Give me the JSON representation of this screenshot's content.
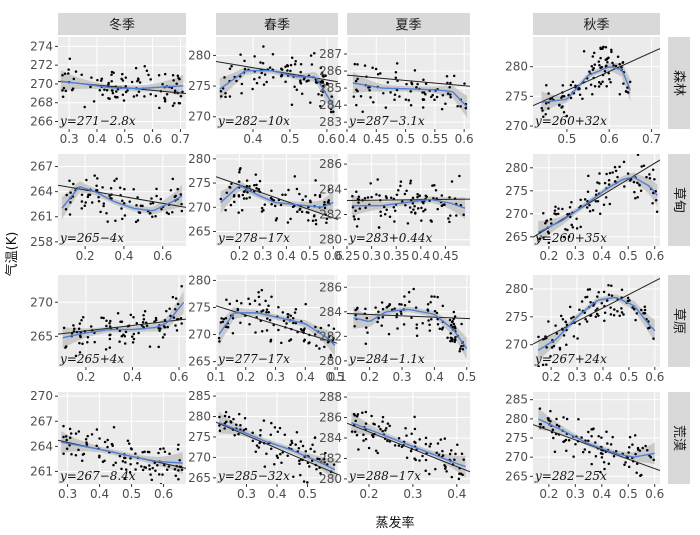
{
  "title": "",
  "xlabel": "蒸发率",
  "ylabel": "气温(K)",
  "col_labels": [
    "冬季",
    "春季",
    "夏季",
    "秋季"
  ],
  "row_labels": [
    "森林",
    "草甸",
    "草原",
    "荒漠"
  ],
  "colors": {
    "panel_bg": "#ebebeb",
    "grid": "#ffffff",
    "strip_bg": "#d9d9d9",
    "points": "#000000",
    "linear_fit": "#222222",
    "smooth_fit": "#4f7fd6",
    "ribbon": "#bdbdbd"
  },
  "chart_data": [
    {
      "type": "scatter",
      "row": "森林",
      "col": "冬季",
      "xlim": [
        0.26,
        0.72
      ],
      "ylim": [
        265.2,
        275.0
      ],
      "xticks": [
        0.3,
        0.4,
        0.5,
        0.6,
        0.7
      ],
      "yticks": [
        266,
        268,
        270,
        272,
        274
      ],
      "fit": {
        "intercept": 271,
        "slope": -2.8
      },
      "equation": "y=271−2.8x",
      "smooth": {
        "x": [
          0.27,
          0.35,
          0.45,
          0.55,
          0.65,
          0.71
        ],
        "y": [
          270.3,
          270.0,
          269.6,
          269.5,
          269.7,
          269.8
        ]
      },
      "n_points": 100
    },
    {
      "type": "scatter",
      "row": "森林",
      "col": "春季",
      "xlim": [
        0.3,
        0.63
      ],
      "ylim": [
        268.0,
        283.0
      ],
      "xticks": [
        0.4,
        0.5,
        0.6
      ],
      "yticks": [
        270,
        275,
        280
      ],
      "fit": {
        "intercept": 282,
        "slope": -10
      },
      "equation": "y=282−10x",
      "smooth": {
        "x": [
          0.31,
          0.38,
          0.45,
          0.52,
          0.57,
          0.62
        ],
        "y": [
          274.5,
          277.5,
          277.5,
          276.5,
          276.5,
          271.5
        ]
      },
      "n_points": 100
    },
    {
      "type": "scatter",
      "row": "森林",
      "col": "夏季",
      "xlim": [
        0.4,
        0.61
      ],
      "ylim": [
        282.6,
        288.0
      ],
      "xticks": [
        0.4,
        0.45,
        0.5,
        0.55,
        0.6
      ],
      "yticks": [
        283,
        284,
        285,
        286,
        287
      ],
      "fit": {
        "intercept": 287,
        "slope": -3.1
      },
      "equation": "y=287−3.1x",
      "smooth": {
        "x": [
          0.41,
          0.46,
          0.51,
          0.55,
          0.58,
          0.605
        ],
        "y": [
          285.3,
          285.0,
          284.95,
          284.9,
          284.8,
          283.9
        ]
      },
      "n_points": 80
    },
    {
      "type": "scatter",
      "row": "森林",
      "col": "秋季",
      "xlim": [
        0.42,
        0.72
      ],
      "ylim": [
        269.5,
        285.0
      ],
      "xticks": [
        0.5,
        0.6,
        0.7
      ],
      "yticks": [
        270,
        275,
        280
      ],
      "fit": {
        "intercept": 260,
        "slope": 32
      },
      "equation": "y=260+32x",
      "smooth": {
        "x": [
          0.44,
          0.5,
          0.55,
          0.6,
          0.63,
          0.65
        ],
        "y": [
          274.0,
          274.5,
          278.5,
          280.0,
          279.5,
          276.0
        ]
      },
      "n_points": 100
    },
    {
      "type": "scatter",
      "row": "草甸",
      "col": "冬季",
      "xlim": [
        0.06,
        0.72
      ],
      "ylim": [
        257.5,
        268.5
      ],
      "xticks": [
        0.2,
        0.4,
        0.6
      ],
      "yticks": [
        258,
        261,
        264,
        267
      ],
      "fit": {
        "intercept": 265,
        "slope": -4
      },
      "equation": "y=265−4x",
      "smooth": {
        "x": [
          0.08,
          0.17,
          0.25,
          0.35,
          0.45,
          0.55,
          0.65,
          0.7
        ],
        "y": [
          262.0,
          264.6,
          264.0,
          262.8,
          262.0,
          261.7,
          262.8,
          263.5
        ]
      },
      "n_points": 90
    },
    {
      "type": "scatter",
      "row": "草甸",
      "col": "春季",
      "xlim": [
        0.1,
        0.62
      ],
      "ylim": [
        262.0,
        281.0
      ],
      "xticks": [
        0.2,
        0.3,
        0.4,
        0.5,
        0.6
      ],
      "yticks": [
        265,
        270,
        275,
        280
      ],
      "fit": {
        "intercept": 278,
        "slope": -17
      },
      "equation": "y=278−17x",
      "smooth": {
        "x": [
          0.12,
          0.2,
          0.28,
          0.35,
          0.45,
          0.55,
          0.6
        ],
        "y": [
          271.0,
          274.5,
          272.5,
          271.0,
          270.5,
          270.0,
          271.0
        ]
      },
      "n_points": 100
    },
    {
      "type": "scatter",
      "row": "草甸",
      "col": "夏季",
      "xlim": [
        0.25,
        0.5
      ],
      "ylim": [
        279.5,
        286.8
      ],
      "xticks": [
        0.25,
        0.3,
        0.35,
        0.4,
        0.45
      ],
      "yticks": [
        280,
        282,
        284,
        286
      ],
      "fit": {
        "intercept": 283,
        "slope": 0.44
      },
      "equation": "y=283+0.44x",
      "smooth": {
        "x": [
          0.26,
          0.32,
          0.38,
          0.42,
          0.46,
          0.49
        ],
        "y": [
          282.7,
          282.7,
          283.0,
          283.2,
          282.9,
          282.5
        ]
      },
      "n_points": 100
    },
    {
      "type": "scatter",
      "row": "草甸",
      "col": "秋季",
      "xlim": [
        0.14,
        0.62
      ],
      "ylim": [
        263.0,
        283.0
      ],
      "xticks": [
        0.2,
        0.3,
        0.4,
        0.5,
        0.6
      ],
      "yticks": [
        265,
        270,
        275,
        280
      ],
      "fit": {
        "intercept": 260,
        "slope": 35
      },
      "equation": "y=260+35x",
      "smooth": {
        "x": [
          0.16,
          0.25,
          0.35,
          0.42,
          0.48,
          0.52,
          0.58,
          0.61
        ],
        "y": [
          266.0,
          268.5,
          272.5,
          275.5,
          277.5,
          278.0,
          276.0,
          274.0
        ]
      },
      "n_points": 100
    },
    {
      "type": "scatter",
      "row": "草原",
      "col": "冬季",
      "xlim": [
        0.08,
        0.63
      ],
      "ylim": [
        260.5,
        274.0
      ],
      "xticks": [
        0.2,
        0.4,
        0.6
      ],
      "yticks": [
        265,
        270
      ],
      "fit": {
        "intercept": 265,
        "slope": 4
      },
      "equation": "y=265+4x",
      "smooth": {
        "x": [
          0.1,
          0.2,
          0.3,
          0.4,
          0.5,
          0.55,
          0.62
        ],
        "y": [
          264.8,
          265.5,
          266.0,
          266.0,
          266.3,
          267.0,
          270.0
        ]
      },
      "n_points": 100
    },
    {
      "type": "scatter",
      "row": "草原",
      "col": "春季",
      "xlim": [
        0.1,
        0.51
      ],
      "ylim": [
        264.0,
        281.0
      ],
      "xticks": [
        0.1,
        0.2,
        0.3,
        0.4,
        0.5
      ],
      "yticks": [
        265,
        270,
        275,
        280
      ],
      "fit": {
        "intercept": 277,
        "slope": -17
      },
      "equation": "y=277−17x",
      "smooth": {
        "x": [
          0.11,
          0.16,
          0.24,
          0.32,
          0.4,
          0.47,
          0.5
        ],
        "y": [
          270.0,
          274.0,
          274.0,
          273.0,
          272.0,
          269.5,
          268.0
        ]
      },
      "n_points": 100
    },
    {
      "type": "scatter",
      "row": "草原",
      "col": "夏季",
      "xlim": [
        0.13,
        0.51
      ],
      "ylim": [
        279.5,
        287.0
      ],
      "xticks": [
        0.1,
        0.2,
        0.3,
        0.4,
        0.5
      ],
      "yticks": [
        280,
        282,
        284,
        286
      ],
      "fit": {
        "intercept": 284,
        "slope": -1.1
      },
      "equation": "y=284−1.1x",
      "smooth": {
        "x": [
          0.15,
          0.2,
          0.25,
          0.32,
          0.4,
          0.46,
          0.5
        ],
        "y": [
          283.5,
          283.2,
          284.0,
          284.2,
          283.8,
          282.5,
          281.0
        ]
      },
      "n_points": 100
    },
    {
      "type": "scatter",
      "row": "草原",
      "col": "秋季",
      "xlim": [
        0.13,
        0.62
      ],
      "ylim": [
        266.0,
        282.5
      ],
      "xticks": [
        0.2,
        0.3,
        0.4,
        0.5,
        0.6
      ],
      "yticks": [
        270,
        275,
        280
      ],
      "fit": {
        "intercept": 267,
        "slope": 24
      },
      "equation": "y=267+24x",
      "smooth": {
        "x": [
          0.15,
          0.22,
          0.3,
          0.38,
          0.45,
          0.52,
          0.58,
          0.6
        ],
        "y": [
          269.0,
          271.0,
          275.0,
          278.0,
          278.5,
          277.0,
          273.5,
          272.5
        ]
      },
      "n_points": 100
    },
    {
      "type": "scatter",
      "row": "荒漠",
      "col": "冬季",
      "xlim": [
        0.27,
        0.67
      ],
      "ylim": [
        259.5,
        270.5
      ],
      "xticks": [
        0.3,
        0.4,
        0.5,
        0.6
      ],
      "yticks": [
        261,
        264,
        267,
        270
      ],
      "fit": {
        "intercept": 267,
        "slope": -8.4
      },
      "equation": "y=267−8.4x",
      "smooth": {
        "x": [
          0.28,
          0.35,
          0.42,
          0.5,
          0.58,
          0.66
        ],
        "y": [
          264.5,
          264.0,
          263.5,
          262.8,
          262.2,
          262.0
        ]
      },
      "n_points": 100
    },
    {
      "type": "scatter",
      "row": "荒漠",
      "col": "春季",
      "xlim": [
        0.2,
        0.6
      ],
      "ylim": [
        263.5,
        286.0
      ],
      "xticks": [
        0.3,
        0.4,
        0.5
      ],
      "yticks": [
        265,
        270,
        275,
        280,
        285
      ],
      "fit": {
        "intercept": 285,
        "slope": -32
      },
      "equation": "y=285−32x",
      "smooth": {
        "x": [
          0.21,
          0.28,
          0.36,
          0.44,
          0.52,
          0.59
        ],
        "y": [
          278.5,
          276.5,
          274.0,
          272.0,
          269.5,
          267.0
        ]
      },
      "n_points": 100
    },
    {
      "type": "scatter",
      "row": "荒漠",
      "col": "夏季",
      "xlim": [
        0.15,
        0.43
      ],
      "ylim": [
        279.5,
        288.5
      ],
      "xticks": [
        0.2,
        0.3,
        0.4
      ],
      "yticks": [
        280,
        282,
        284,
        286,
        288
      ],
      "fit": {
        "intercept": 288,
        "slope": -17
      },
      "equation": "y=288−17x",
      "smooth": {
        "x": [
          0.16,
          0.22,
          0.28,
          0.34,
          0.4,
          0.42
        ],
        "y": [
          285.5,
          284.5,
          283.5,
          282.5,
          281.5,
          281.2
        ]
      },
      "n_points": 100
    },
    {
      "type": "scatter",
      "row": "荒漠",
      "col": "秋季",
      "xlim": [
        0.14,
        0.62
      ],
      "ylim": [
        263.0,
        287.0
      ],
      "xticks": [
        0.2,
        0.3,
        0.4,
        0.5,
        0.6
      ],
      "yticks": [
        265,
        270,
        275,
        280,
        285
      ],
      "fit": {
        "intercept": 282,
        "slope": -25
      },
      "equation": "y=282−25x",
      "smooth": {
        "x": [
          0.16,
          0.25,
          0.35,
          0.45,
          0.52,
          0.6
        ],
        "y": [
          280.0,
          277.0,
          273.5,
          271.0,
          270.0,
          271.0
        ]
      },
      "n_points": 100
    }
  ]
}
